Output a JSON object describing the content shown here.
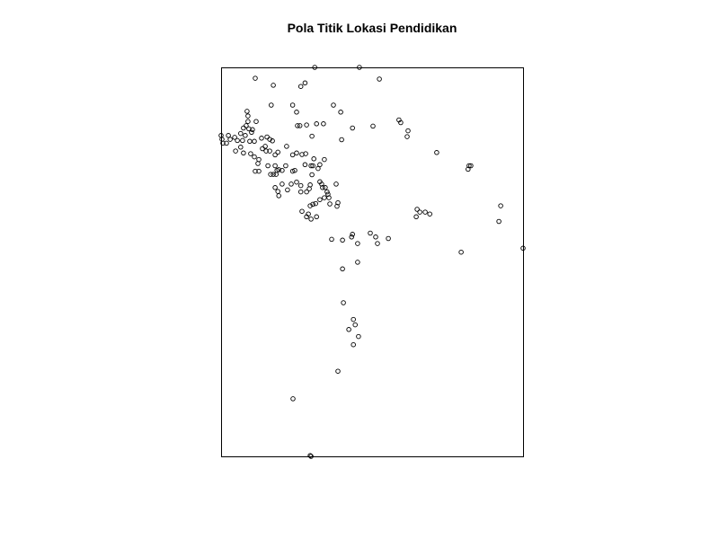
{
  "chart_data": {
    "type": "scatter",
    "title": "Pola Titik Lokasi Pendidikan",
    "xlabel": "",
    "ylabel": "",
    "grid": false,
    "axes_visible": false,
    "colors": {
      "point_stroke": "#000000",
      "background": "#ffffff",
      "frame": "#000000"
    },
    "xlim": [
      0,
      100
    ],
    "ylim": [
      0,
      100
    ],
    "points": [
      [
        31.0,
        100.0
      ],
      [
        45.8,
        100.0
      ],
      [
        52.4,
        97.0
      ],
      [
        11.3,
        97.2
      ],
      [
        27.8,
        96.0
      ],
      [
        26.4,
        95.1
      ],
      [
        17.3,
        95.4
      ],
      [
        37.2,
        90.3
      ],
      [
        16.6,
        90.3
      ],
      [
        23.7,
        90.3
      ],
      [
        39.6,
        88.5
      ],
      [
        13.4,
        81.8
      ],
      [
        0,
        82.5
      ],
      [
        0.3,
        81.5
      ],
      [
        0.6,
        80.5
      ],
      [
        2.4,
        82.5
      ],
      [
        3.0,
        81.5
      ],
      [
        1.8,
        80.5
      ],
      [
        4.5,
        82.0
      ],
      [
        5.4,
        81.2
      ],
      [
        6.5,
        83.0
      ],
      [
        7.4,
        84.4
      ],
      [
        8.3,
        85.0
      ],
      [
        9.2,
        84.2
      ],
      [
        10.1,
        83.3
      ],
      [
        8.0,
        82.5
      ],
      [
        7.1,
        81.2
      ],
      [
        9.5,
        81.0
      ],
      [
        11.0,
        81.0
      ],
      [
        8.6,
        88.7
      ],
      [
        8.9,
        87.5
      ],
      [
        8.9,
        86.1
      ],
      [
        11.6,
        86.1
      ],
      [
        10.4,
        84.0
      ],
      [
        15.2,
        82.1
      ],
      [
        16.1,
        81.5
      ],
      [
        17.0,
        81.1
      ],
      [
        14.6,
        79.7
      ],
      [
        4.8,
        78.5
      ],
      [
        6.5,
        79.5
      ],
      [
        7.4,
        78.0
      ],
      [
        9.8,
        77.8
      ],
      [
        11.0,
        77.0
      ],
      [
        12.5,
        76.3
      ],
      [
        12.2,
        75.3
      ],
      [
        13.7,
        79.1
      ],
      [
        14.9,
        78.5
      ],
      [
        16.1,
        78.5
      ],
      [
        17.9,
        77.5
      ],
      [
        18.8,
        78.2
      ],
      [
        21.7,
        79.7
      ],
      [
        15.5,
        74.7
      ],
      [
        17.9,
        74.7
      ],
      [
        18.5,
        73.5
      ],
      [
        19.1,
        73.7
      ],
      [
        16.4,
        72.5
      ],
      [
        17.3,
        72.5
      ],
      [
        18.2,
        72.5
      ],
      [
        21.4,
        74.7
      ],
      [
        20.2,
        73.5
      ],
      [
        23.7,
        73.3
      ],
      [
        24.4,
        73.5
      ],
      [
        11.3,
        73.3
      ],
      [
        12.5,
        73.3
      ],
      [
        20.2,
        70.0
      ],
      [
        23.2,
        70.0
      ],
      [
        25.0,
        70.5
      ],
      [
        26.4,
        69.6
      ],
      [
        22.0,
        68.5
      ],
      [
        26.4,
        68.0
      ],
      [
        17.9,
        69.1
      ],
      [
        18.8,
        68.1
      ],
      [
        19.1,
        67.0
      ],
      [
        27.8,
        75.0
      ],
      [
        29.8,
        74.7
      ],
      [
        30.4,
        74.7
      ],
      [
        32.1,
        74.0
      ],
      [
        30.1,
        72.4
      ],
      [
        29.5,
        69.8
      ],
      [
        29.2,
        68.8
      ],
      [
        28.3,
        68.0
      ],
      [
        32.7,
        70.6
      ],
      [
        33.3,
        70.0
      ],
      [
        33.6,
        69.1
      ],
      [
        34.5,
        69.1
      ],
      [
        35.1,
        68.0
      ],
      [
        35.4,
        67.4
      ],
      [
        38.1,
        70.0
      ],
      [
        35.7,
        66.5
      ],
      [
        34.2,
        66.5
      ],
      [
        32.7,
        66.0
      ],
      [
        31.3,
        65.0
      ],
      [
        30.4,
        64.8
      ],
      [
        29.5,
        64.4
      ],
      [
        26.8,
        63.0
      ],
      [
        28.3,
        61.6
      ],
      [
        28.9,
        62.3
      ],
      [
        29.8,
        61.0
      ],
      [
        31.6,
        61.6
      ],
      [
        36.0,
        64.9
      ],
      [
        38.7,
        65.2
      ],
      [
        38.4,
        64.3
      ],
      [
        23.7,
        77.5
      ],
      [
        25.0,
        78.0
      ],
      [
        26.8,
        77.6
      ],
      [
        28.0,
        77.8
      ],
      [
        32.7,
        75.0
      ],
      [
        30.7,
        76.5
      ],
      [
        34.2,
        76.3
      ],
      [
        25.0,
        88.5
      ],
      [
        25.3,
        85.0
      ],
      [
        26.1,
        85.0
      ],
      [
        28.3,
        85.2
      ],
      [
        31.6,
        85.5
      ],
      [
        33.9,
        85.5
      ],
      [
        30.1,
        82.3
      ],
      [
        39.9,
        81.4
      ],
      [
        43.5,
        84.4
      ],
      [
        50.3,
        84.9
      ],
      [
        58.9,
        86.5
      ],
      [
        59.5,
        85.8
      ],
      [
        61.9,
        83.7
      ],
      [
        61.6,
        82.2
      ],
      [
        71.4,
        78.1
      ],
      [
        82.1,
        74.7
      ],
      [
        82.7,
        74.7
      ],
      [
        81.8,
        73.8
      ],
      [
        64.9,
        63.5
      ],
      [
        65.8,
        62.8
      ],
      [
        67.6,
        62.8
      ],
      [
        69.1,
        62.3
      ],
      [
        64.6,
        61.6
      ],
      [
        92.6,
        64.4
      ],
      [
        92.0,
        60.4
      ],
      [
        100.0,
        53.5
      ],
      [
        79.5,
        52.5
      ],
      [
        36.6,
        55.8
      ],
      [
        40.2,
        55.6
      ],
      [
        43.2,
        56.4
      ],
      [
        43.5,
        57.1
      ],
      [
        45.2,
        54.7
      ],
      [
        49.4,
        57.4
      ],
      [
        51.2,
        56.4
      ],
      [
        51.8,
        54.7
      ],
      [
        55.4,
        56.0
      ],
      [
        40.2,
        48.2
      ],
      [
        45.2,
        49.9
      ],
      [
        40.5,
        39.5
      ],
      [
        43.8,
        35.2
      ],
      [
        44.4,
        33.8
      ],
      [
        42.3,
        32.6
      ],
      [
        45.5,
        30.8
      ],
      [
        43.8,
        28.7
      ],
      [
        38.7,
        21.9
      ],
      [
        23.8,
        14.8
      ],
      [
        29.5,
        0.2
      ],
      [
        29.8,
        0.0
      ]
    ]
  }
}
